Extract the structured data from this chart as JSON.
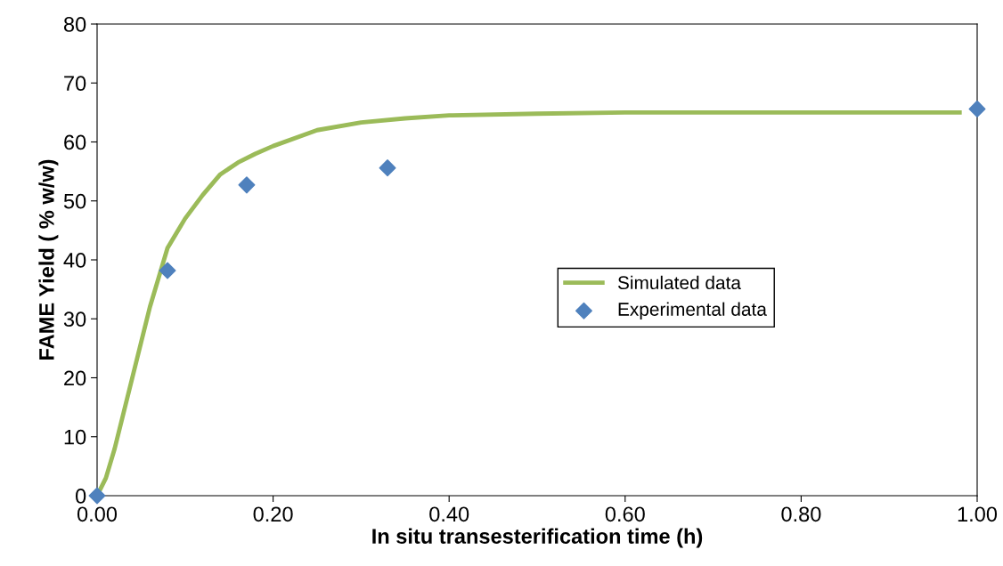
{
  "chart_data": {
    "type": "line",
    "xlabel": "In situ transesterification time (h)",
    "ylabel": "FAME Yield ( % w/w)",
    "series": [
      {
        "name": "Simulated data",
        "color": "#9bbb59",
        "marker": "none",
        "x": [
          0,
          0.01,
          0.02,
          0.03,
          0.04,
          0.05,
          0.06,
          0.07,
          0.08,
          0.1,
          0.12,
          0.14,
          0.16,
          0.18,
          0.2,
          0.25,
          0.3,
          0.35,
          0.4,
          0.5,
          0.6,
          0.8,
          0.98
        ],
        "values": [
          0,
          3,
          8,
          14,
          20,
          26,
          32,
          37,
          42,
          47,
          51,
          54.5,
          56.5,
          58,
          59.3,
          62,
          63.3,
          64,
          64.5,
          64.8,
          65,
          65,
          65
        ]
      },
      {
        "name": "Experimental data",
        "type": "scatter",
        "color": "#4f81bd",
        "marker": "diamond",
        "x": [
          0,
          0.08,
          0.17,
          0.33,
          1.0
        ],
        "values": [
          0,
          38.2,
          52.7,
          55.6,
          65.6
        ]
      }
    ],
    "xlim": [
      0,
      1
    ],
    "xticks": [
      {
        "value": 0,
        "label": "0.00"
      },
      {
        "value": 0.2,
        "label": "0.20"
      },
      {
        "value": 0.4,
        "label": "0.40"
      },
      {
        "value": 0.6,
        "label": "0.60"
      },
      {
        "value": 0.8,
        "label": "0.80"
      },
      {
        "value": 1,
        "label": "1.00"
      }
    ],
    "ylim": [
      0,
      80
    ],
    "yticks": [
      0,
      10,
      20,
      30,
      40,
      50,
      60,
      70,
      80
    ],
    "grid": false,
    "legend": "right"
  }
}
